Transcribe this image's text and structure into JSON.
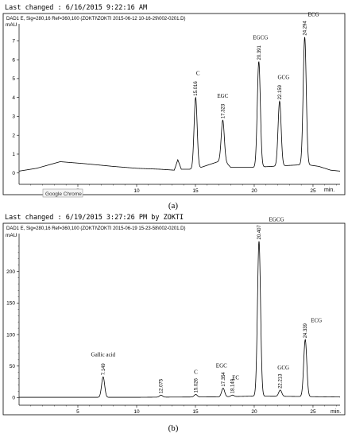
{
  "panels": [
    {
      "last_changed": "Last changed    : 6/16/2015 9:22:16 AM",
      "header": "DAD1 E, Sig=280,16 Ref=360,100 (ZOKTI\\ZOKTI 2015-06-12 10-16-29\\002-0201.D)",
      "caption": "(a)",
      "tooltip": "Google Chrome",
      "chart_data": {
        "type": "line",
        "ylabel": "mAU",
        "xlabel": "min.",
        "xlim": [
          0,
          27.3
        ],
        "ylim": [
          -0.6,
          7.9
        ],
        "x_ticks": [
          "5",
          "10",
          "15",
          "20",
          "25"
        ],
        "y_ticks": [
          "0",
          "1",
          "2",
          "3",
          "4",
          "5",
          "6",
          "7"
        ],
        "baseline": [
          [
            0,
            0.1
          ],
          [
            1.5,
            0.25
          ],
          [
            3.5,
            0.6
          ],
          [
            5.5,
            0.5
          ],
          [
            8,
            0.35
          ],
          [
            10,
            0.25
          ],
          [
            12,
            0.2
          ],
          [
            13.2,
            0.15
          ],
          [
            13.5,
            0.7
          ],
          [
            13.8,
            0.2
          ],
          [
            15,
            0.2
          ],
          [
            17.4,
            0.7
          ],
          [
            18,
            0.3
          ],
          [
            20,
            0.3
          ],
          [
            24.4,
            0.45
          ],
          [
            25.5,
            0.35
          ],
          [
            26.5,
            0.15
          ],
          [
            27.3,
            0.1
          ]
        ],
        "peaks": [
          {
            "rt": 15.016,
            "rt_label": "15.016",
            "height": 4.0,
            "name": "C"
          },
          {
            "rt": 17.323,
            "rt_label": "17.323",
            "height": 2.8,
            "name": "EGC"
          },
          {
            "rt": 20.391,
            "rt_label": "20.391",
            "height": 5.9,
            "name": "EGCG"
          },
          {
            "rt": 22.159,
            "rt_label": "22.159",
            "height": 3.8,
            "name": "GCG"
          },
          {
            "rt": 24.294,
            "rt_label": "24.294",
            "height": 7.2,
            "name": "ECG"
          }
        ]
      }
    },
    {
      "last_changed": "Last changed    : 6/19/2015 3:27:26 PM by ZOKTI",
      "header": "DAD1 E, Sig=280,16 Ref=360,100 (ZOKTI\\ZOKTI 2015-06-19 15-23-58\\002-0201.D)",
      "caption": "(b)",
      "chart_data": {
        "type": "line",
        "ylabel": "mAU",
        "xlabel": "min.",
        "xlim": [
          0,
          27.3
        ],
        "ylim": [
          -12,
          260
        ],
        "x_ticks": [
          "5",
          "10",
          "15",
          "20",
          "25"
        ],
        "y_ticks": [
          "0",
          "50",
          "100",
          "150",
          "200"
        ],
        "baseline": [
          [
            0,
            0.5
          ],
          [
            7.1,
            0.5
          ],
          [
            10,
            0.5
          ],
          [
            12,
            0.8
          ],
          [
            17,
            1.2
          ],
          [
            20,
            2.5
          ],
          [
            23,
            2
          ],
          [
            27.3,
            1
          ]
        ],
        "peaks": [
          {
            "rt": 7.149,
            "rt_label": "7.149",
            "height": 33,
            "name": "Gallic acid"
          },
          {
            "rt": 12.075,
            "rt_label": "12.075",
            "height": 4,
            "name": ""
          },
          {
            "rt": 15.026,
            "rt_label": "15.026",
            "height": 5,
            "name": "C"
          },
          {
            "rt": 17.354,
            "rt_label": "17.354",
            "height": 15,
            "name": "EGC"
          },
          {
            "rt": 18.149,
            "rt_label": "18.149",
            "height": 4,
            "name": "EC"
          },
          {
            "rt": 20.407,
            "rt_label": "20.407",
            "height": 248,
            "name": "EGCG"
          },
          {
            "rt": 22.213,
            "rt_label": "22.213",
            "height": 12,
            "name": "GCG"
          },
          {
            "rt": 24.339,
            "rt_label": "24.339",
            "height": 92,
            "name": "ECG"
          }
        ]
      }
    }
  ]
}
